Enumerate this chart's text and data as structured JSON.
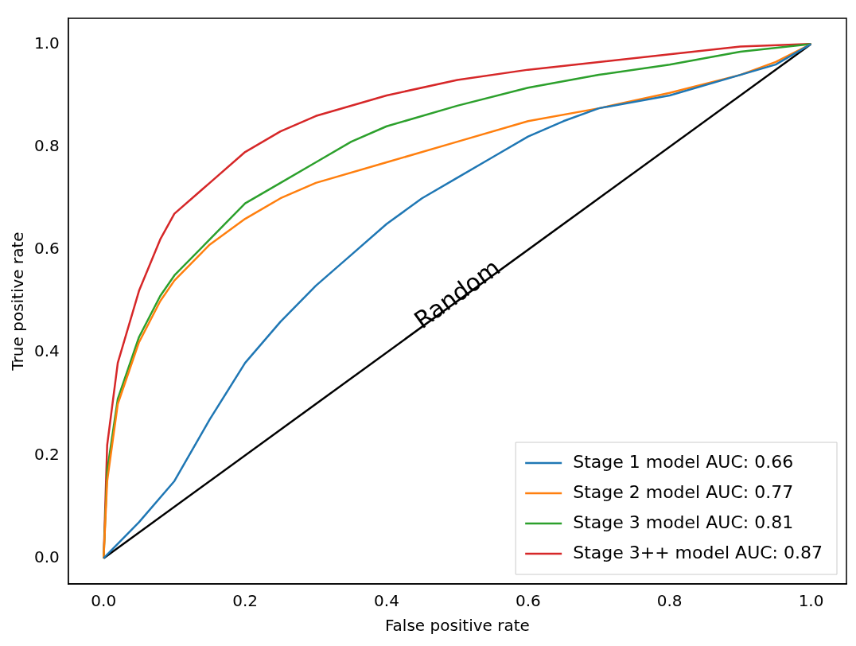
{
  "chart_data": {
    "type": "line",
    "xlabel": "False positive rate",
    "ylabel": "True positive rate",
    "xlim": [
      -0.05,
      1.05
    ],
    "ylim": [
      -0.05,
      1.05
    ],
    "xticks": [
      {
        "value": 0,
        "label": "0.0"
      },
      {
        "value": 0.2,
        "label": "0.2"
      },
      {
        "value": 0.4,
        "label": "0.4"
      },
      {
        "value": 0.6,
        "label": "0.6"
      },
      {
        "value": 0.8,
        "label": "0.8"
      },
      {
        "value": 1,
        "label": "1.0"
      }
    ],
    "yticks": [
      {
        "value": 0,
        "label": "0.0"
      },
      {
        "value": 0.2,
        "label": "0.2"
      },
      {
        "value": 0.4,
        "label": "0.4"
      },
      {
        "value": 0.6,
        "label": "0.6"
      },
      {
        "value": 0.8,
        "label": "0.8"
      },
      {
        "value": 1,
        "label": "1.0"
      }
    ],
    "grid": false,
    "legend": "bottom right",
    "marker": "none",
    "line_style": "solid",
    "series": [
      {
        "name": "Stage 1 model AUC: 0.66",
        "color": "#1f77b4",
        "x": [
          0,
          0.05,
          0.1,
          0.15,
          0.2,
          0.25,
          0.3,
          0.35,
          0.4,
          0.45,
          0.5,
          0.55,
          0.6,
          0.65,
          0.7,
          0.8,
          0.9,
          0.95,
          1
        ],
        "values": [
          0,
          0.07,
          0.15,
          0.27,
          0.38,
          0.46,
          0.53,
          0.59,
          0.65,
          0.7,
          0.74,
          0.78,
          0.82,
          0.85,
          0.875,
          0.9,
          0.94,
          0.96,
          1
        ]
      },
      {
        "name": "Stage 2 model AUC: 0.77",
        "color": "#ff7f0e",
        "x": [
          0,
          0.005,
          0.02,
          0.05,
          0.08,
          0.1,
          0.15,
          0.2,
          0.25,
          0.3,
          0.4,
          0.5,
          0.6,
          0.7,
          0.8,
          0.9,
          0.95,
          1
        ],
        "values": [
          0,
          0.15,
          0.3,
          0.42,
          0.5,
          0.54,
          0.61,
          0.66,
          0.7,
          0.73,
          0.77,
          0.81,
          0.85,
          0.875,
          0.905,
          0.94,
          0.965,
          1
        ]
      },
      {
        "name": "Stage 3 model AUC: 0.81",
        "color": "#2ca02c",
        "x": [
          0,
          0.005,
          0.02,
          0.05,
          0.08,
          0.1,
          0.15,
          0.2,
          0.25,
          0.3,
          0.35,
          0.4,
          0.5,
          0.6,
          0.7,
          0.8,
          0.9,
          1
        ],
        "values": [
          0,
          0.17,
          0.31,
          0.43,
          0.51,
          0.55,
          0.62,
          0.69,
          0.73,
          0.77,
          0.81,
          0.84,
          0.88,
          0.915,
          0.94,
          0.96,
          0.985,
          1
        ]
      },
      {
        "name": "Stage 3++ model AUC: 0.87",
        "color": "#d62728",
        "x": [
          0,
          0.005,
          0.02,
          0.05,
          0.08,
          0.1,
          0.15,
          0.2,
          0.25,
          0.3,
          0.4,
          0.5,
          0.6,
          0.7,
          0.8,
          0.9,
          1
        ],
        "values": [
          0,
          0.22,
          0.38,
          0.52,
          0.62,
          0.67,
          0.73,
          0.79,
          0.83,
          0.86,
          0.9,
          0.93,
          0.95,
          0.965,
          0.98,
          0.995,
          1
        ]
      },
      {
        "color": "#000000",
        "x": [
          0,
          1
        ],
        "values": [
          0,
          1
        ]
      }
    ],
    "annotations": [
      "Random"
    ]
  }
}
